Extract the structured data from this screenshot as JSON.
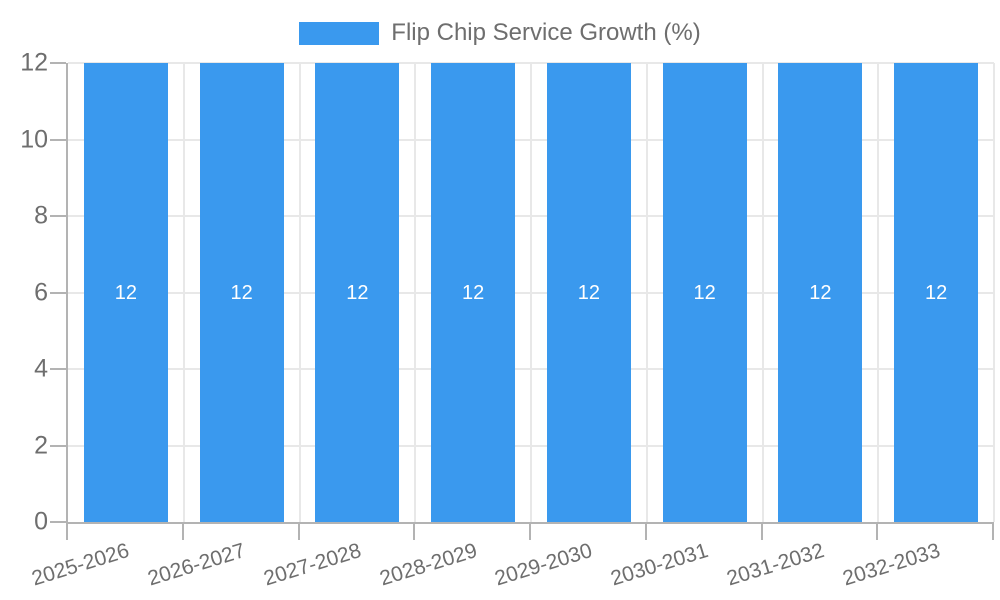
{
  "chart_data": {
    "type": "bar",
    "title": "Flip Chip Service Growth (%)",
    "categories": [
      "2025-2026",
      "2026-2027",
      "2027-2028",
      "2028-2029",
      "2029-2030",
      "2030-2031",
      "2031-2032",
      "2032-2033"
    ],
    "series": [
      {
        "name": "Flip Chip Service Growth (%)",
        "values": [
          12,
          12,
          12,
          12,
          12,
          12,
          12,
          12
        ]
      }
    ],
    "bar_value_labels": [
      "12",
      "12",
      "12",
      "12",
      "12",
      "12",
      "12",
      "12"
    ],
    "xlabel": "",
    "ylabel": "",
    "ylim": [
      0,
      12
    ],
    "yticks": [
      0,
      2,
      4,
      6,
      8,
      10,
      12
    ],
    "ytick_labels": [
      "0",
      "2",
      "4",
      "6",
      "8",
      "10",
      "12"
    ],
    "grid": true,
    "legend_position": "top",
    "colors": {
      "bar": "#3A99EE",
      "bar_value_label": "#FFFFFF",
      "axis_line": "#B3B3B3",
      "gridline": "#E8E8E8",
      "tick_label": "#6E6E6E",
      "legend_label": "#6E6E6E",
      "background": "#FFFFFF"
    }
  }
}
